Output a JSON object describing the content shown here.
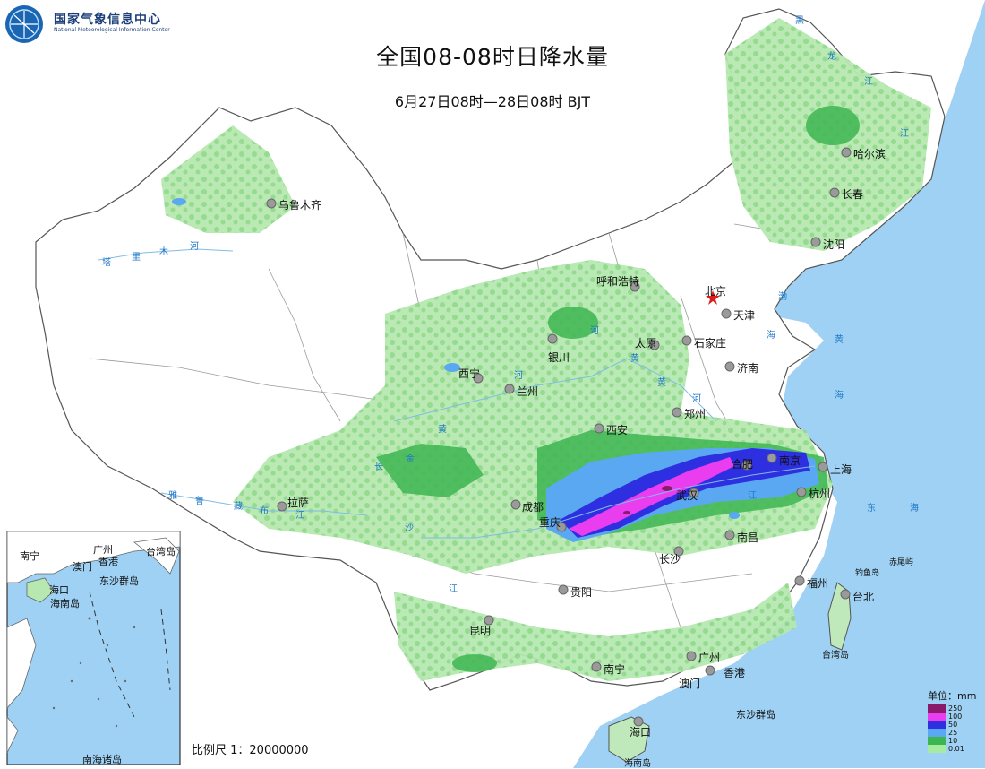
{
  "header": {
    "org_cn": "国家气象信息中心",
    "org_en": "National Meteorological Information Center",
    "title": "全国08-08时日降水量",
    "subtitle": "6月27日08时—28日08时 BJT"
  },
  "scale_label": "比例尺 1：20000000",
  "capital_marker": "red-star-icon",
  "cities": [
    {
      "name": "乌鲁木齐",
      "id": "urumqi"
    },
    {
      "name": "哈尔滨",
      "id": "harbin"
    },
    {
      "name": "长春",
      "id": "changchun"
    },
    {
      "name": "沈阳",
      "id": "shenyang"
    },
    {
      "name": "呼和浩特",
      "id": "hohhot"
    },
    {
      "name": "北京",
      "id": "beijing"
    },
    {
      "name": "天津",
      "id": "tianjin"
    },
    {
      "name": "太原",
      "id": "taiyuan"
    },
    {
      "name": "石家庄",
      "id": "shijiazhuang"
    },
    {
      "name": "银川",
      "id": "yinchuan"
    },
    {
      "name": "济南",
      "id": "jinan"
    },
    {
      "name": "西宁",
      "id": "xining"
    },
    {
      "name": "兰州",
      "id": "lanzhou"
    },
    {
      "name": "郑州",
      "id": "zhengzhou"
    },
    {
      "name": "西安",
      "id": "xian"
    },
    {
      "name": "南京",
      "id": "nanjing"
    },
    {
      "name": "上海",
      "id": "shanghai"
    },
    {
      "name": "合肥",
      "id": "hefei"
    },
    {
      "name": "武汉",
      "id": "wuhan"
    },
    {
      "name": "杭州",
      "id": "hangzhou"
    },
    {
      "name": "拉萨",
      "id": "lhasa"
    },
    {
      "name": "成都",
      "id": "chengdu"
    },
    {
      "name": "重庆",
      "id": "chongqing"
    },
    {
      "name": "南昌",
      "id": "nanchang"
    },
    {
      "name": "长沙",
      "id": "changsha"
    },
    {
      "name": "贵阳",
      "id": "guiyang"
    },
    {
      "name": "福州",
      "id": "fuzhou"
    },
    {
      "name": "台北",
      "id": "taipei"
    },
    {
      "name": "昆明",
      "id": "kunming"
    },
    {
      "name": "南宁",
      "id": "nanning"
    },
    {
      "name": "广州",
      "id": "guangzhou"
    },
    {
      "name": "澳门",
      "id": "macau"
    },
    {
      "name": "香港",
      "id": "hongkong"
    },
    {
      "name": "海口",
      "id": "haikou"
    },
    {
      "name": "台湾岛",
      "id": "taiwan-island"
    },
    {
      "name": "海南岛",
      "id": "hainan-island"
    },
    {
      "name": "钓鱼岛",
      "id": "diaoyu-island"
    },
    {
      "name": "赤尾屿",
      "id": "chiwei-islet"
    },
    {
      "name": "东沙群岛",
      "id": "dongsha-islands"
    }
  ],
  "rivers": {
    "tarim": [
      "塔",
      "里",
      "木",
      "河"
    ],
    "yarlung": [
      "雅",
      "鲁",
      "藏",
      "布",
      "江"
    ],
    "yellow": [
      "黄",
      "河",
      "河",
      "黄",
      "河",
      "黄"
    ],
    "yangtze": [
      "金",
      "沙",
      "江",
      "长",
      "江",
      "江"
    ],
    "heilong": [
      "黑",
      "龙",
      "江"
    ]
  },
  "seas": {
    "bohai": [
      "渤",
      "海"
    ],
    "yellow_sea": [
      "黄",
      "海"
    ],
    "east_sea": [
      "东",
      "海"
    ]
  },
  "inset": {
    "labels": [
      "南宁",
      "广州",
      "台湾岛",
      "香港",
      "澳门",
      "东沙群岛",
      "海口",
      "海南岛"
    ],
    "title": "南海诸岛"
  },
  "legend": {
    "title": "单位：mm",
    "items": [
      {
        "value": "250",
        "color": "#8b1a6b"
      },
      {
        "value": "100",
        "color": "#ea3df0"
      },
      {
        "value": "50",
        "color": "#2e2fe0"
      },
      {
        "value": "25",
        "color": "#5aa8f2"
      },
      {
        "value": "10",
        "color": "#3db651"
      },
      {
        "value": "0.01",
        "color": "#a7eaa2"
      }
    ]
  }
}
